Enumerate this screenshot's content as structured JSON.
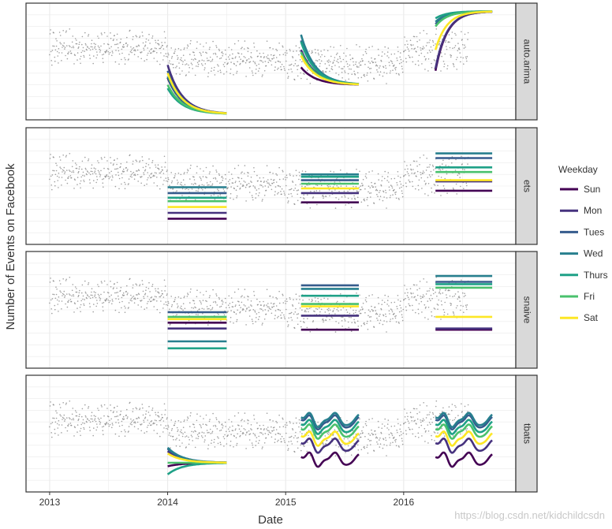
{
  "chart_data": {
    "type": "line",
    "title": "",
    "xlabel": "Date",
    "ylabel": "Number of Events on Facebook",
    "x_ticks": [
      "2013",
      "2014",
      "2015",
      "2016"
    ],
    "x_range": [
      2012.8,
      2016.95
    ],
    "y_range": [
      0,
      100
    ],
    "grid": true,
    "legend": {
      "title": "Weekday",
      "placement": "right",
      "entries": [
        "Sun",
        "Mon",
        "Tues",
        "Wed",
        "Thurs",
        "Fri",
        "Sat"
      ],
      "colors": [
        "#440154",
        "#46327e",
        "#365c8d",
        "#277f8e",
        "#1fa187",
        "#4ac16d",
        "#fde725"
      ]
    },
    "background_points": {
      "description": "observed daily values (grey dots)",
      "color": "#808080",
      "periods": [
        {
          "start": 2013.0,
          "end": 2014.0,
          "mean": 62,
          "amp": 14
        },
        {
          "start": 2014.0,
          "end": 2015.0,
          "mean": 52,
          "amp": 14
        },
        {
          "start": 2015.0,
          "end": 2016.0,
          "mean": 48,
          "amp": 15
        },
        {
          "start": 2016.0,
          "end": 2016.55,
          "mean": 60,
          "amp": 16
        }
      ]
    },
    "facets": [
      {
        "name": "auto.arima",
        "windows": [
          {
            "x_start": 2014.0,
            "x_end": 2014.5,
            "shape": "decay",
            "start": [
              36,
              47,
              42,
              37,
              27,
              30,
              40
            ],
            "end": [
              5,
              5,
              5,
              5,
              5,
              5,
              5
            ]
          },
          {
            "x_start": 2015.13,
            "x_end": 2015.62,
            "shape": "decay",
            "start": [
              45,
              60,
              68,
              73,
              67,
              58,
              55
            ],
            "end": [
              30,
              30,
              30,
              30,
              30,
              30,
              30
            ]
          },
          {
            "x_start": 2016.27,
            "x_end": 2016.75,
            "shape": "rise",
            "start": [
              42,
              44,
              82,
              84,
              87,
              80,
              60
            ],
            "end": [
              93,
              93,
              93,
              93,
              93,
              93,
              93
            ]
          }
        ]
      },
      {
        "name": "ets",
        "windows": [
          {
            "x_start": 2014.0,
            "x_end": 2014.5,
            "shape": "flat",
            "values": [
              22,
              27,
              44,
              49,
              40,
              37,
              32
            ]
          },
          {
            "x_start": 2015.13,
            "x_end": 2015.62,
            "shape": "flat",
            "values": [
              36,
              44,
              55,
              60,
              58,
              52,
              48
            ]
          },
          {
            "x_start": 2016.27,
            "x_end": 2016.75,
            "shape": "flat",
            "values": [
              46,
              54,
              74,
              78,
              66,
              62,
              55
            ]
          }
        ]
      },
      {
        "name": "snaive",
        "windows": [
          {
            "x_start": 2014.0,
            "x_end": 2014.5,
            "shape": "flat",
            "values": [
              39,
              34,
              48,
              23,
              17,
              44,
              42
            ]
          },
          {
            "x_start": 2015.13,
            "x_end": 2015.62,
            "shape": "flat",
            "values": [
              33,
              45,
              71,
              68,
              62,
              55,
              53
            ]
          },
          {
            "x_start": 2016.27,
            "x_end": 2016.75,
            "shape": "flat",
            "values": [
              33,
              34,
              74,
              79,
              72,
              69,
              44
            ]
          }
        ]
      },
      {
        "name": "tbats",
        "windows": [
          {
            "x_start": 2014.0,
            "x_end": 2014.5,
            "shape": "converge",
            "start": [
              22,
              35,
              37,
              38,
              15,
              25,
              33
            ],
            "end": [
              25,
              25,
              25,
              25,
              25,
              25,
              25
            ]
          },
          {
            "x_start": 2015.13,
            "x_end": 2015.62,
            "shape": "wave",
            "values": [
              28,
              40,
              60,
              62,
              56,
              52,
              46
            ]
          },
          {
            "x_start": 2016.27,
            "x_end": 2016.75,
            "shape": "wave",
            "values": [
              28,
              40,
              60,
              62,
              56,
              52,
              46
            ]
          }
        ]
      }
    ]
  },
  "watermark": "https://blog.csdn.net/kidchildcsdn"
}
